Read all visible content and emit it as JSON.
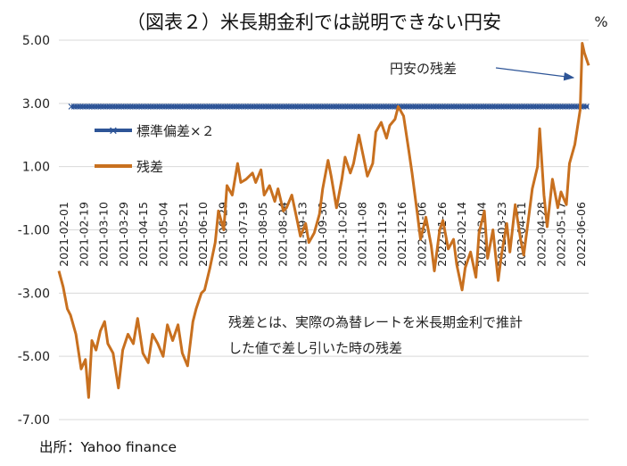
{
  "title": "（図表２）米長期金利では説明できない円安",
  "unit": "%",
  "source": "出所：Yahoo finance",
  "note_lines": [
    "残差とは、実際の為替レートを米長期金利で推計",
    "した値で差し引いた時の残差"
  ],
  "annotation": "円安の残差",
  "colors": {
    "std": "#2e5597",
    "resid": "#c8701f",
    "grid": "#d9d9d9",
    "negative": "#c00000",
    "arrow": "#2e5597"
  },
  "chart_data": {
    "type": "line",
    "ylim": [
      -7,
      5
    ],
    "yticks": [
      {
        "value": 5,
        "label": "5.00"
      },
      {
        "value": 3,
        "label": "3.00"
      },
      {
        "value": 1,
        "label": "1.00"
      },
      {
        "value": -1,
        "label": "-1.00"
      },
      {
        "value": -3,
        "label": "-3.00"
      },
      {
        "value": -5,
        "label": "-5.00"
      },
      {
        "value": -7,
        "label": "-7.00"
      }
    ],
    "xrange": [
      "2021-02-01",
      "2022-06-14"
    ],
    "xtick_labels": [
      "2021-02-01",
      "2021-02-19",
      "2021-03-10",
      "2021-03-29",
      "2021-04-15",
      "2021-05-04",
      "2021-05-21",
      "2021-06-10",
      "2021-06-29",
      "2021-07-19",
      "2021-08-05",
      "2021-08-24",
      "2021-09-13",
      "2021-09-30",
      "2021-10-20",
      "2021-11-08",
      "2021-11-29",
      "2021-12-16",
      "2022-01-06",
      "2022-01-26",
      "2022-02-14",
      "2022-03-04",
      "2022-03-23",
      "2022-04-11",
      "2022-04-28",
      "2022-05-17",
      "2022-06-06"
    ],
    "series": [
      {
        "name": "標準偏差×２",
        "style": "line-with-x-markers",
        "constant": 2.9
      },
      {
        "name": "残差",
        "style": "line",
        "x": [
          "2021-02-01",
          "2021-02-05",
          "2021-02-09",
          "2021-02-12",
          "2021-02-17",
          "2021-02-22",
          "2021-02-26",
          "2021-03-01",
          "2021-03-04",
          "2021-03-08",
          "2021-03-12",
          "2021-03-16",
          "2021-03-19",
          "2021-03-24",
          "2021-03-29",
          "2021-04-02",
          "2021-04-07",
          "2021-04-12",
          "2021-04-16",
          "2021-04-21",
          "2021-04-26",
          "2021-04-30",
          "2021-05-05",
          "2021-05-10",
          "2021-05-14",
          "2021-05-19",
          "2021-05-24",
          "2021-05-28",
          "2021-06-02",
          "2021-06-07",
          "2021-06-10",
          "2021-06-15",
          "2021-06-18",
          "2021-06-23",
          "2021-06-28",
          "2021-07-01",
          "2021-07-06",
          "2021-07-09",
          "2021-07-14",
          "2021-07-19",
          "2021-07-22",
          "2021-07-27",
          "2021-08-02",
          "2021-08-05",
          "2021-08-10",
          "2021-08-13",
          "2021-08-18",
          "2021-08-23",
          "2021-08-26",
          "2021-08-31",
          "2021-09-03",
          "2021-09-08",
          "2021-09-13",
          "2021-09-16",
          "2021-09-21",
          "2021-09-24",
          "2021-09-29",
          "2021-10-04",
          "2021-10-07",
          "2021-10-12",
          "2021-10-15",
          "2021-10-20",
          "2021-10-25",
          "2021-10-28",
          "2021-11-02",
          "2021-11-05",
          "2021-11-10",
          "2021-11-15",
          "2021-11-18",
          "2021-11-23",
          "2021-11-26",
          "2021-12-01",
          "2021-12-06",
          "2021-12-09",
          "2021-12-14",
          "2021-12-17",
          "2021-12-22",
          "2021-12-27",
          "2021-12-30",
          "2022-01-04",
          "2022-01-07",
          "2022-01-12",
          "2022-01-17",
          "2022-01-20",
          "2022-01-25",
          "2022-01-28",
          "2022-02-02",
          "2022-02-07",
          "2022-02-10",
          "2022-02-15",
          "2022-02-18",
          "2022-02-23",
          "2022-02-28",
          "2022-03-03",
          "2022-03-08",
          "2022-03-11",
          "2022-03-16",
          "2022-03-21",
          "2022-03-24",
          "2022-03-29",
          "2022-04-01",
          "2022-04-06",
          "2022-04-11",
          "2022-04-14",
          "2022-04-19",
          "2022-04-22",
          "2022-04-27",
          "2022-04-29",
          "2022-05-03",
          "2022-05-06",
          "2022-05-11",
          "2022-05-16",
          "2022-05-19",
          "2022-05-24",
          "2022-05-27",
          "2022-06-01",
          "2022-06-06",
          "2022-06-08",
          "2022-06-10",
          "2022-06-14"
        ],
        "y": [
          -2.3,
          -2.8,
          -3.5,
          -3.7,
          -4.3,
          -5.4,
          -5.1,
          -6.3,
          -4.5,
          -4.8,
          -4.2,
          -3.9,
          -4.6,
          -4.9,
          -6.0,
          -4.8,
          -4.3,
          -4.6,
          -3.8,
          -4.9,
          -5.2,
          -4.3,
          -4.6,
          -5.0,
          -4.0,
          -4.5,
          -4.0,
          -4.9,
          -5.3,
          -3.9,
          -3.5,
          -3.0,
          -2.9,
          -2.2,
          -1.4,
          -0.4,
          -1.0,
          0.4,
          0.1,
          1.1,
          0.5,
          0.6,
          0.8,
          0.5,
          0.9,
          0.1,
          0.4,
          -0.1,
          0.3,
          -0.4,
          -0.3,
          0.1,
          -0.7,
          -1.2,
          -0.8,
          -1.4,
          -1.1,
          -0.5,
          0.3,
          1.2,
          0.7,
          -0.3,
          0.6,
          1.3,
          0.8,
          1.1,
          2.0,
          1.2,
          0.7,
          1.1,
          2.1,
          2.4,
          1.9,
          2.3,
          2.5,
          2.9,
          2.6,
          1.5,
          0.8,
          -0.5,
          -1.3,
          -0.6,
          -1.5,
          -2.3,
          -1.0,
          -0.7,
          -1.6,
          -1.3,
          -2.1,
          -2.9,
          -2.2,
          -1.7,
          -2.5,
          -1.1,
          -0.4,
          -1.9,
          -1.0,
          -2.6,
          -1.8,
          -0.8,
          -1.7,
          -0.2,
          -1.3,
          -1.8,
          -0.5,
          0.3,
          1.0,
          2.2,
          0.1,
          -0.9,
          0.6,
          -0.3,
          0.2,
          -0.2,
          1.1,
          1.7,
          2.8,
          4.9,
          4.6,
          4.2
        ]
      }
    ]
  }
}
